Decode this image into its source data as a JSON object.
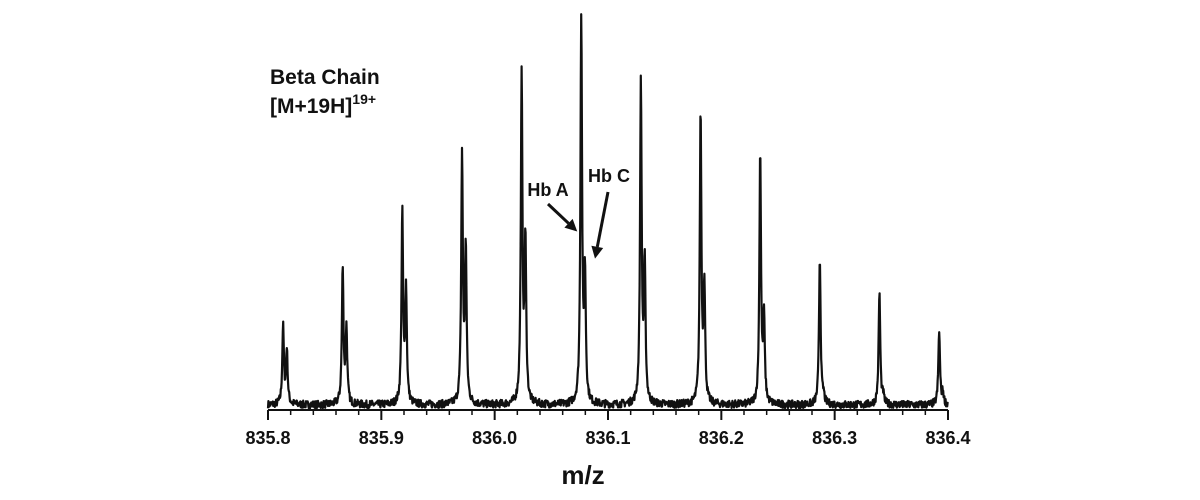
{
  "chart_data": {
    "type": "line",
    "title_line1": "Beta Chain",
    "title_line2_base": "[M+19H]",
    "title_line2_sup": "19+",
    "xlabel": "m/z",
    "ylabel": "",
    "xlim": [
      835.8,
      836.4
    ],
    "ylim": [
      0,
      1
    ],
    "x_ticks": [
      "835.8",
      "835.9",
      "836.0",
      "836.1",
      "836.2",
      "836.3",
      "836.4"
    ],
    "grid": false,
    "baseline": 0.013,
    "series": [
      {
        "peaks_hb_a": [
          {
            "mz": 835.8133,
            "intensity": 0.2
          },
          {
            "mz": 835.8659,
            "intensity": 0.35
          },
          {
            "mz": 835.9185,
            "intensity": 0.49
          },
          {
            "mz": 835.9712,
            "intensity": 0.64
          },
          {
            "mz": 836.0238,
            "intensity": 0.84
          },
          {
            "mz": 836.0764,
            "intensity": 1.0
          },
          {
            "mz": 836.129,
            "intensity": 0.83
          },
          {
            "mz": 836.1817,
            "intensity": 0.75
          },
          {
            "mz": 836.2343,
            "intensity": 0.65
          },
          {
            "mz": 836.2869,
            "intensity": 0.38
          },
          {
            "mz": 836.3395,
            "intensity": 0.29
          },
          {
            "mz": 836.3922,
            "intensity": 0.19
          }
        ],
        "peaks_hb_c": [
          {
            "mz": 835.8166,
            "intensity": 0.14
          },
          {
            "mz": 835.8692,
            "intensity": 0.19
          },
          {
            "mz": 835.9218,
            "intensity": 0.29
          },
          {
            "mz": 835.9745,
            "intensity": 0.4
          },
          {
            "mz": 836.0271,
            "intensity": 0.41
          },
          {
            "mz": 836.0797,
            "intensity": 0.32
          },
          {
            "mz": 836.1324,
            "intensity": 0.35
          },
          {
            "mz": 836.185,
            "intensity": 0.3
          },
          {
            "mz": 836.2376,
            "intensity": 0.22
          },
          {
            "mz": 836.2902,
            "intensity": 0.02
          },
          {
            "mz": 836.3428,
            "intensity": 0.02
          },
          {
            "mz": 836.3955,
            "intensity": 0.03
          }
        ]
      }
    ],
    "annotations": [
      {
        "text": "Hb A",
        "points_to_mz": 836.0764,
        "points_to_intensity": 0.46
      },
      {
        "text": "Hb C",
        "points_to_mz": 836.0797,
        "points_to_intensity": 0.39
      }
    ],
    "colors": {
      "line": "#111111",
      "text": "#111111"
    }
  }
}
